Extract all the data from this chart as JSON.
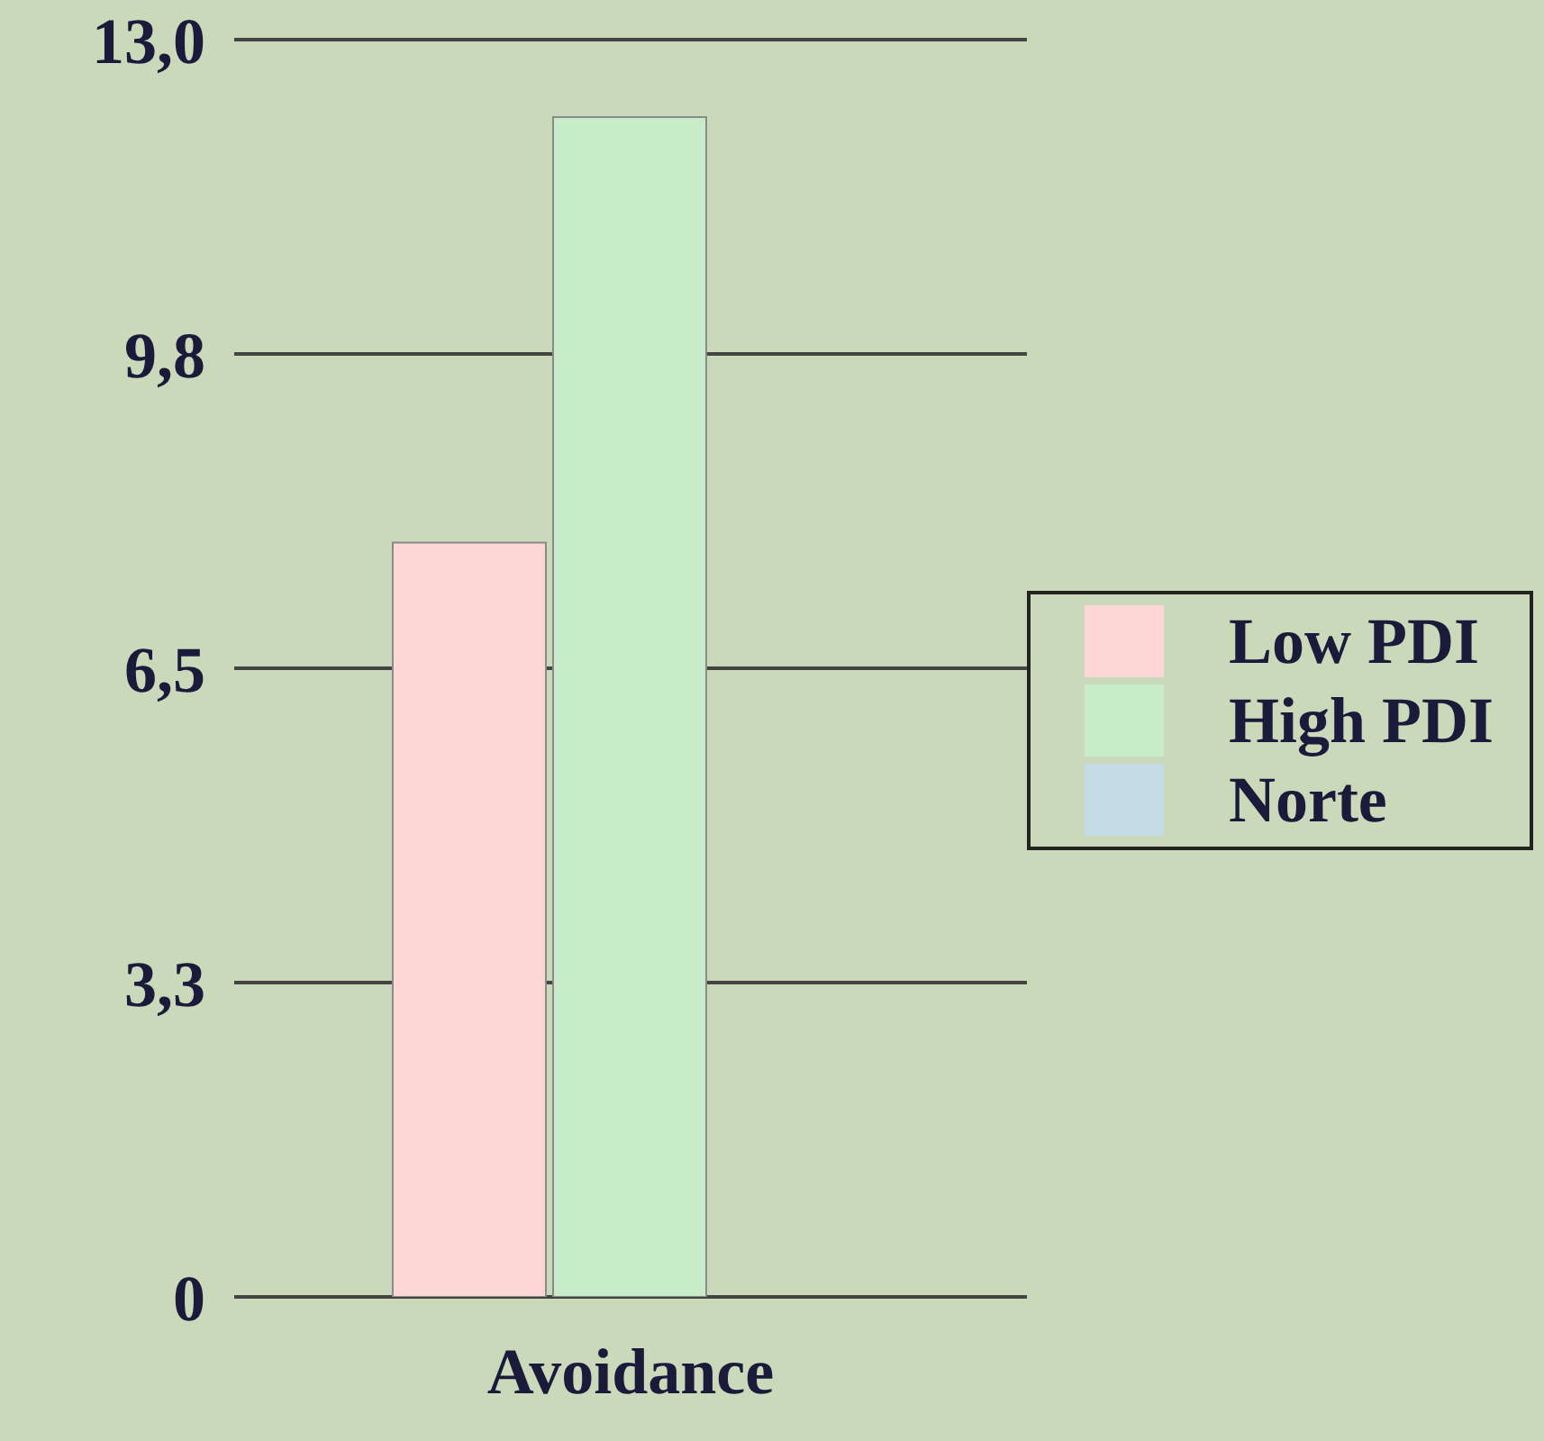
{
  "chart_data": {
    "type": "bar",
    "categories": [
      "Avoidance"
    ],
    "series": [
      {
        "name": "Low PDI",
        "color": "#ffd6d6",
        "values": [
          7.8
        ]
      },
      {
        "name": "High PDI",
        "color": "#c8ecc8",
        "values": [
          12.2
        ]
      },
      {
        "name": "Norte",
        "color": "#c5dbe6",
        "values": [
          null
        ]
      }
    ],
    "ylim": [
      0,
      13
    ],
    "yticks": [
      0,
      {
        "value": 3.25,
        "label": "3,3"
      },
      {
        "value": 6.5,
        "label": "6,5"
      },
      {
        "value": 9.75,
        "label": "9,8"
      },
      {
        "value": 13,
        "label": "13,0"
      }
    ],
    "grid": "y",
    "legend": "right"
  }
}
